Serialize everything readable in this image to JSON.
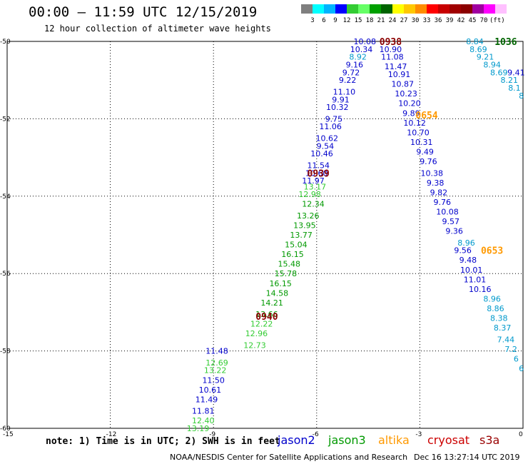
{
  "header": {
    "title": "00:00 – 11:59 UTC 12/15/2019",
    "subtitle": "12 hour collection of altimeter wave heights"
  },
  "colorbar": {
    "colors": [
      "#7f7f7f",
      "#00ffff",
      "#00b4ff",
      "#0000ff",
      "#33cc33",
      "#66ff66",
      "#00a000",
      "#006400",
      "#ffff00",
      "#ffc800",
      "#ff8c00",
      "#ff0000",
      "#c80000",
      "#a00000",
      "#8b0000",
      "#a000a0",
      "#ff00ff",
      "#ffc0ff",
      "#ffffff"
    ],
    "labels": [
      "3",
      "6",
      "9",
      "12",
      "15",
      "18",
      "21",
      "24",
      "27",
      "30",
      "33",
      "36",
      "39",
      "42",
      "45",
      "70",
      "(ft)"
    ]
  },
  "footer": {
    "note": "note: 1) Time is in UTC; 2) SWH is in feet",
    "legend": [
      {
        "label": "jason2",
        "color": "#0000cc"
      },
      {
        "label": "jason3",
        "color": "#009900"
      },
      {
        "label": "altika",
        "color": "#ff9900"
      },
      {
        "label": "cryosat",
        "color": "#cc0000"
      },
      {
        "label": "s3a",
        "color": "#990000"
      }
    ],
    "credit": "NOAA/NESDIS Center for Satellite Applications and Research",
    "timestamp": "Dec 16 13:27:14 UTC 2019"
  },
  "chart_data": {
    "type": "scatter",
    "xlim": [
      -15,
      0
    ],
    "ylim": [
      -60,
      -50
    ],
    "xticks": [
      "-15",
      "-12",
      "-9",
      "-6",
      "-3",
      "0"
    ],
    "yticks": [
      "-50",
      "-52",
      "-54",
      "-56",
      "-58",
      "-60"
    ],
    "grid": true,
    "time_labels": [
      {
        "text": "0938",
        "x": -3.85,
        "y": -50.0,
        "color": "#8b0000"
      },
      {
        "text": "1036",
        "x": -0.5,
        "y": -50.0,
        "color": "#006400"
      },
      {
        "text": "0654",
        "x": -2.8,
        "y": -51.9,
        "color": "#ff9900"
      },
      {
        "text": "0939",
        "x": -5.95,
        "y": -53.4,
        "color": "#8b0000"
      },
      {
        "text": "0653",
        "x": -0.9,
        "y": -55.4,
        "color": "#ff9900"
      },
      {
        "text": "0940",
        "x": -7.45,
        "y": -57.1,
        "color": "#8b0000"
      }
    ],
    "series": [
      {
        "color": "#0000cc",
        "points": [
          {
            "x": -4.6,
            "y": -50.0,
            "v": "10.08"
          },
          {
            "x": -4.7,
            "y": -50.2,
            "v": "10.34"
          },
          {
            "x": -4.9,
            "y": -50.6,
            "v": "9.16"
          },
          {
            "x": -5.0,
            "y": -50.8,
            "v": "9.72"
          },
          {
            "x": -5.1,
            "y": -51.0,
            "v": "9.22"
          },
          {
            "x": -5.2,
            "y": -51.3,
            "v": "11.10"
          },
          {
            "x": -5.3,
            "y": -51.5,
            "v": "9.91"
          },
          {
            "x": -5.4,
            "y": -51.7,
            "v": "10.32"
          },
          {
            "x": -5.5,
            "y": -52.0,
            "v": "9.75"
          },
          {
            "x": -5.6,
            "y": -52.2,
            "v": "11.06"
          },
          {
            "x": -5.7,
            "y": -52.5,
            "v": "10.62"
          },
          {
            "x": -5.75,
            "y": -52.7,
            "v": "9.54"
          },
          {
            "x": -5.85,
            "y": -52.9,
            "v": "10.46"
          },
          {
            "x": -5.95,
            "y": -53.2,
            "v": "11.54"
          },
          {
            "x": -6.0,
            "y": -53.4,
            "v": "10.60"
          },
          {
            "x": -6.1,
            "y": -53.6,
            "v": "11.97"
          },
          {
            "x": -3.85,
            "y": -50.2,
            "v": "10.90"
          },
          {
            "x": -3.8,
            "y": -50.4,
            "v": "11.08"
          },
          {
            "x": -3.7,
            "y": -50.65,
            "v": "11.47"
          },
          {
            "x": -3.6,
            "y": -50.85,
            "v": "10.91"
          },
          {
            "x": -3.5,
            "y": -51.1,
            "v": "10.87"
          },
          {
            "x": -3.4,
            "y": -51.35,
            "v": "10.23"
          },
          {
            "x": -3.3,
            "y": -51.6,
            "v": "10.20"
          },
          {
            "x": -3.25,
            "y": -51.85,
            "v": "9.89"
          },
          {
            "x": -3.15,
            "y": -52.1,
            "v": "10.12"
          },
          {
            "x": -3.05,
            "y": -52.35,
            "v": "10.70"
          },
          {
            "x": -2.95,
            "y": -52.6,
            "v": "10.31"
          },
          {
            "x": -2.85,
            "y": -52.85,
            "v": "9.49"
          },
          {
            "x": -2.75,
            "y": -53.1,
            "v": "9.76"
          },
          {
            "x": -2.65,
            "y": -53.4,
            "v": "10.38"
          },
          {
            "x": -2.55,
            "y": -53.65,
            "v": "9.38"
          },
          {
            "x": -2.45,
            "y": -53.9,
            "v": "9.82"
          },
          {
            "x": -2.35,
            "y": -54.15,
            "v": "9.76"
          },
          {
            "x": -2.2,
            "y": -54.4,
            "v": "10.08"
          },
          {
            "x": -2.1,
            "y": -54.65,
            "v": "9.57"
          },
          {
            "x": -2.0,
            "y": -54.9,
            "v": "9.36"
          },
          {
            "x": -1.75,
            "y": -55.4,
            "v": "9.56"
          },
          {
            "x": -1.6,
            "y": -55.65,
            "v": "9.48"
          },
          {
            "x": -1.5,
            "y": -55.9,
            "v": "10.01"
          },
          {
            "x": -1.4,
            "y": -56.15,
            "v": "11.01"
          },
          {
            "x": -1.25,
            "y": -56.4,
            "v": "10.16"
          },
          {
            "x": -0.2,
            "y": -50.8,
            "v": "9.41"
          },
          {
            "x": -8.9,
            "y": -58.0,
            "v": "11.48"
          },
          {
            "x": -9.0,
            "y": -58.75,
            "v": "11.50"
          },
          {
            "x": -9.1,
            "y": -59.0,
            "v": "10.61"
          },
          {
            "x": -9.2,
            "y": -59.25,
            "v": "11.49"
          },
          {
            "x": -9.3,
            "y": -59.55,
            "v": "11.81"
          }
        ]
      },
      {
        "color": "#009900",
        "points": [
          {
            "x": -6.1,
            "y": -54.2,
            "v": "12.34"
          },
          {
            "x": -6.25,
            "y": -54.5,
            "v": "13.26"
          },
          {
            "x": -6.35,
            "y": -54.75,
            "v": "13.95"
          },
          {
            "x": -6.45,
            "y": -55.0,
            "v": "13.77"
          },
          {
            "x": -6.6,
            "y": -55.25,
            "v": "15.04"
          },
          {
            "x": -6.7,
            "y": -55.5,
            "v": "16.15"
          },
          {
            "x": -6.8,
            "y": -55.75,
            "v": "15.48"
          },
          {
            "x": -6.9,
            "y": -56.0,
            "v": "15.78"
          },
          {
            "x": -7.05,
            "y": -56.25,
            "v": "16.15"
          },
          {
            "x": -7.15,
            "y": -56.5,
            "v": "14.58"
          },
          {
            "x": -7.3,
            "y": -56.75,
            "v": "14.21"
          },
          {
            "x": -7.45,
            "y": -57.05,
            "v": "13.66"
          }
        ]
      },
      {
        "color": "#33cc33",
        "points": [
          {
            "x": -6.05,
            "y": -53.75,
            "v": "13.17"
          },
          {
            "x": -6.2,
            "y": -53.95,
            "v": "12.98"
          },
          {
            "x": -7.6,
            "y": -57.3,
            "v": "12.22"
          },
          {
            "x": -7.75,
            "y": -57.55,
            "v": "12.96"
          },
          {
            "x": -7.8,
            "y": -57.85,
            "v": "12.73"
          },
          {
            "x": -8.9,
            "y": -58.3,
            "v": "12.69"
          },
          {
            "x": -8.95,
            "y": -58.5,
            "v": "13.22"
          },
          {
            "x": -9.3,
            "y": -59.8,
            "v": "12.40"
          },
          {
            "x": -9.45,
            "y": -60.0,
            "v": "13.19"
          }
        ]
      },
      {
        "color": "#0099cc",
        "points": [
          {
            "x": -4.8,
            "y": -50.4,
            "v": "8.92"
          },
          {
            "x": -1.65,
            "y": -55.2,
            "v": "8.96"
          },
          {
            "x": -0.9,
            "y": -56.65,
            "v": "8.96"
          },
          {
            "x": -0.8,
            "y": -56.9,
            "v": "8.86"
          },
          {
            "x": -0.7,
            "y": -57.15,
            "v": "8.38"
          },
          {
            "x": -0.6,
            "y": -57.4,
            "v": "8.37"
          },
          {
            "x": -0.5,
            "y": -57.7,
            "v": "7.44"
          },
          {
            "x": -0.35,
            "y": -57.95,
            "v": "7.2"
          },
          {
            "x": -0.2,
            "y": -58.2,
            "v": "6"
          },
          {
            "x": -0.05,
            "y": -58.45,
            "v": "6"
          },
          {
            "x": -1.4,
            "y": -50.0,
            "v": "8.84"
          },
          {
            "x": -1.3,
            "y": -50.2,
            "v": "8.69"
          },
          {
            "x": -1.1,
            "y": -50.4,
            "v": "9.21"
          },
          {
            "x": -0.9,
            "y": -50.6,
            "v": "8.94"
          },
          {
            "x": -0.7,
            "y": -50.8,
            "v": "8.69"
          },
          {
            "x": -0.4,
            "y": -51.0,
            "v": "8.21"
          },
          {
            "x": -0.25,
            "y": -51.2,
            "v": "8.1"
          },
          {
            "x": -0.05,
            "y": -51.4,
            "v": "8"
          }
        ]
      }
    ]
  }
}
